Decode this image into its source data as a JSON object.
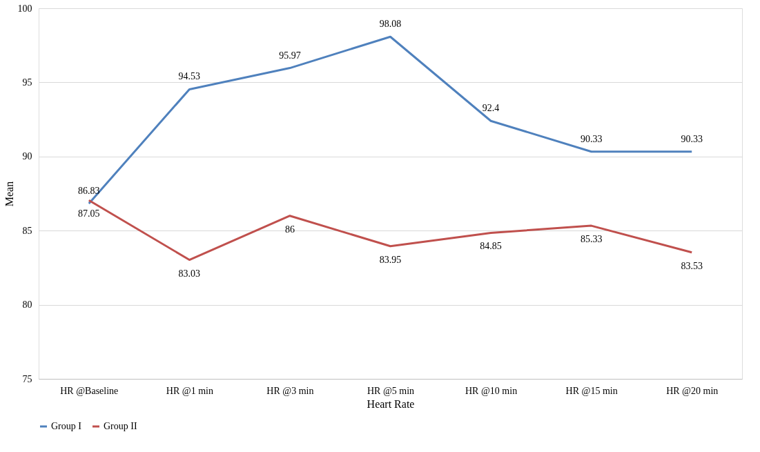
{
  "chart_data": {
    "type": "line",
    "xlabel": "Heart Rate",
    "ylabel": "Mean",
    "categories": [
      "HR @Baseline",
      "HR @1 min",
      "HR @3 min",
      "HR @5 min",
      "HR @10 min",
      "HR @15 min",
      "HR @20 min"
    ],
    "series": [
      {
        "name": "Group I",
        "color": "#4f81bd",
        "values": [
          86.83,
          94.53,
          95.97,
          98.08,
          92.4,
          90.33,
          90.33
        ]
      },
      {
        "name": "Group II",
        "color": "#c0504d",
        "values": [
          87.05,
          83.03,
          86,
          83.95,
          84.85,
          85.33,
          83.53
        ]
      }
    ],
    "ylim": [
      75,
      100
    ],
    "yticks": [
      75,
      80,
      85,
      90,
      95,
      100
    ],
    "grid": "y",
    "legend": "bottom",
    "data_labels": true,
    "marker": "none",
    "line_style": "solid"
  }
}
